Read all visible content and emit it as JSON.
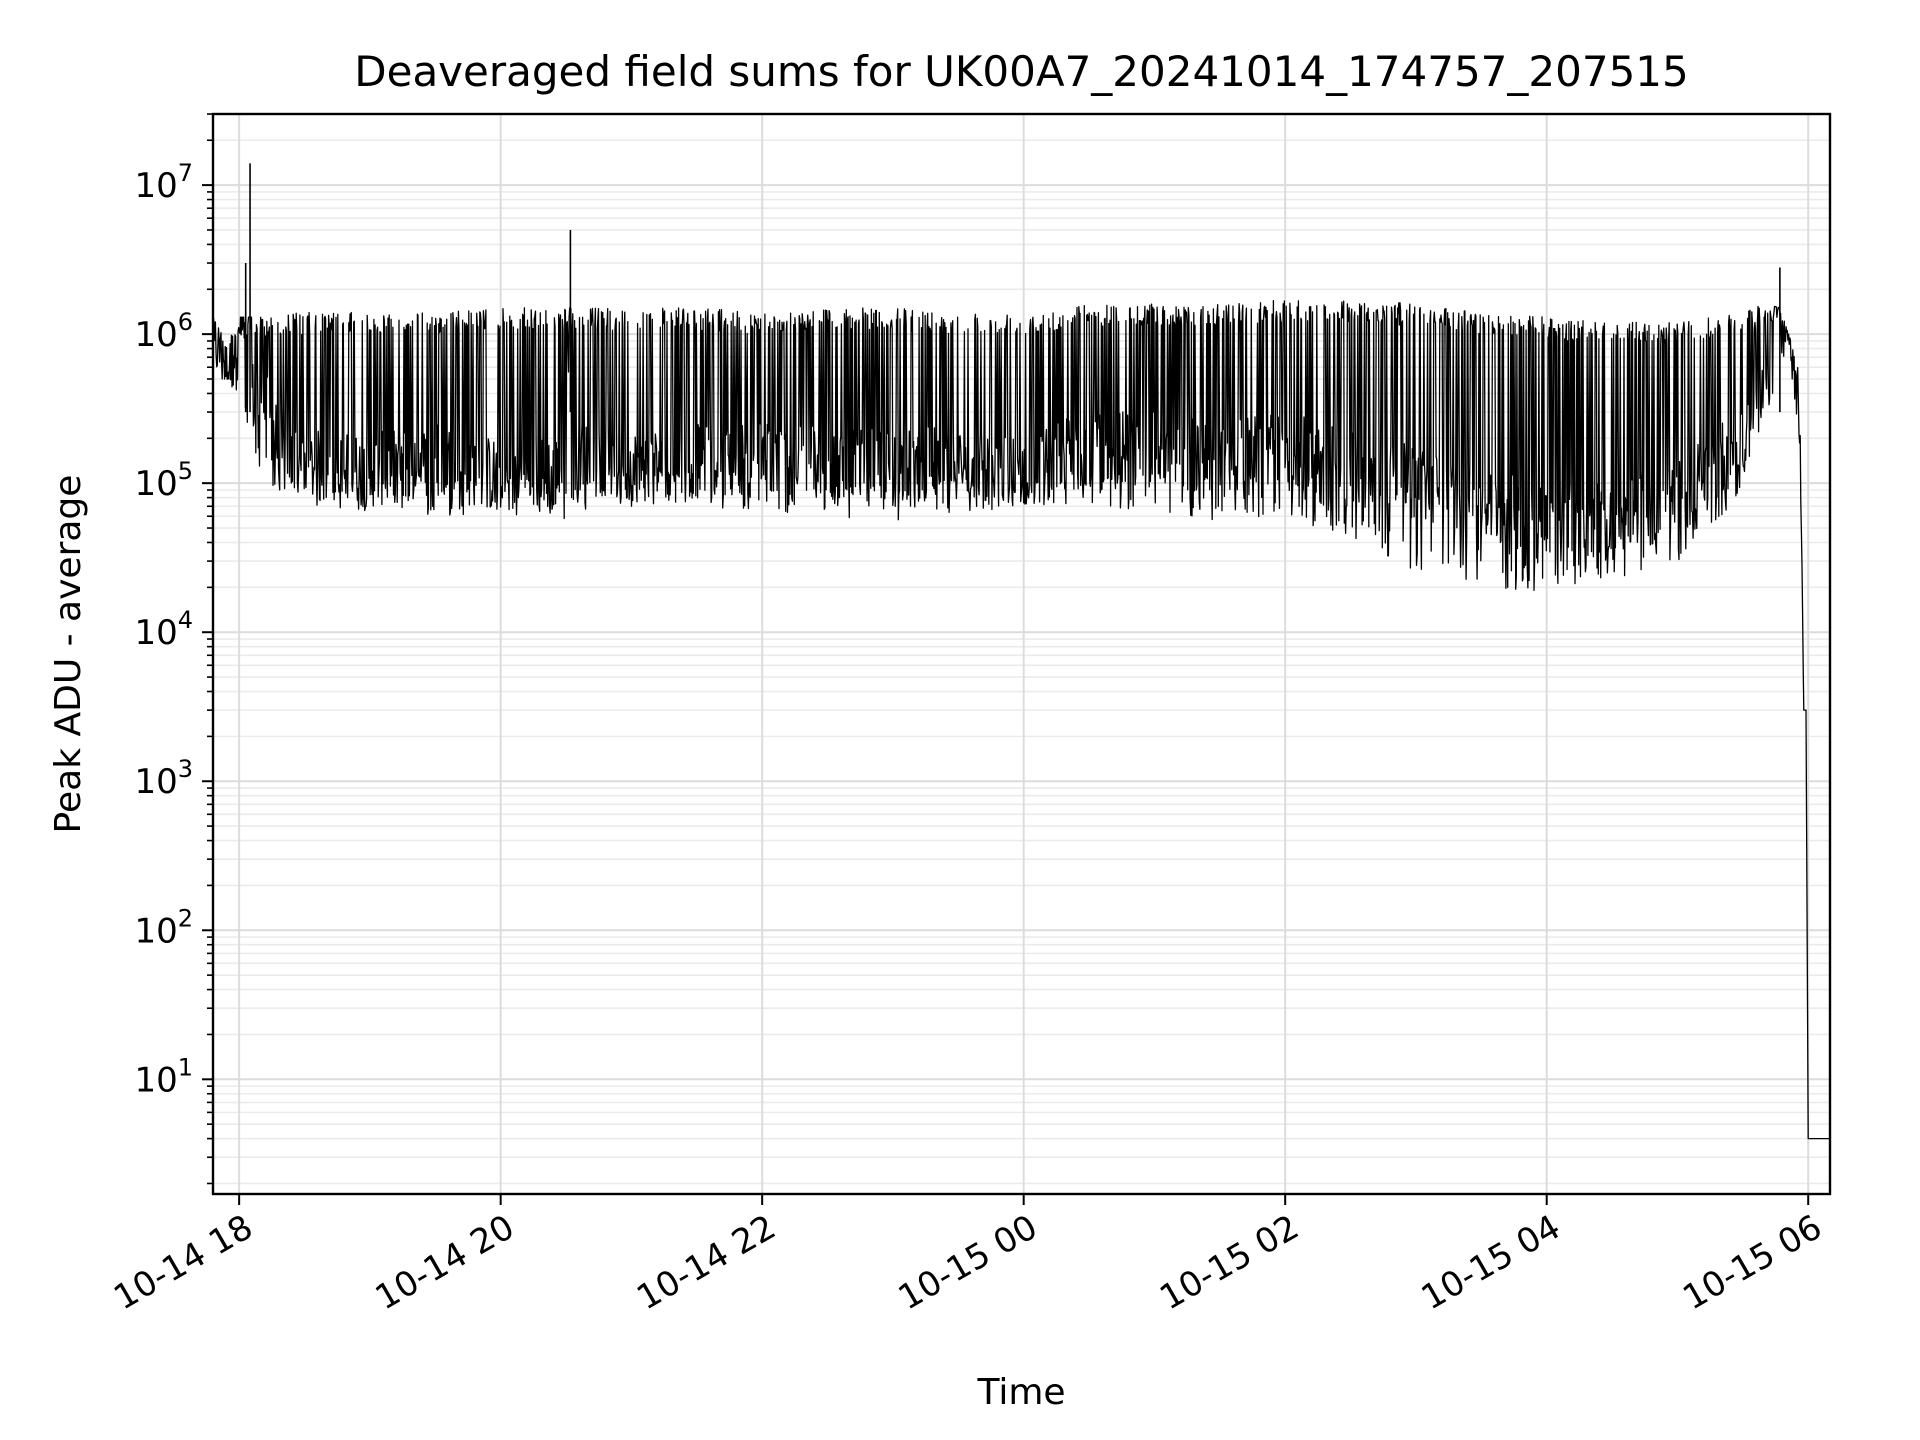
{
  "chart_data": {
    "type": "line",
    "title": "Deaveraged field sums for UK00A7_20241014_174757_207515",
    "xlabel": "Time",
    "ylabel": "Peak ADU - average",
    "yscale": "log",
    "ylim": [
      1.7,
      30000000
    ],
    "xlim": [
      "2024-10-14 17:48",
      "2024-10-15 06:10"
    ],
    "grid": true,
    "legend": "none",
    "line_color": "#000000",
    "x_ticks": [
      {
        "x": "2024-10-14 18:00",
        "label": "10-14 18"
      },
      {
        "x": "2024-10-14 20:00",
        "label": "10-14 20"
      },
      {
        "x": "2024-10-14 22:00",
        "label": "10-14 22"
      },
      {
        "x": "2024-10-15 00:00",
        "label": "10-15 00"
      },
      {
        "x": "2024-10-15 02:00",
        "label": "10-15 02"
      },
      {
        "x": "2024-10-15 04:00",
        "label": "10-15 04"
      },
      {
        "x": "2024-10-15 06:00",
        "label": "10-15 06"
      }
    ],
    "y_ticks": [
      {
        "value": 10,
        "base": "10",
        "exp": "1"
      },
      {
        "value": 100,
        "base": "10",
        "exp": "2"
      },
      {
        "value": 1000,
        "base": "10",
        "exp": "3"
      },
      {
        "value": 10000,
        "base": "10",
        "exp": "4"
      },
      {
        "value": 100000,
        "base": "10",
        "exp": "5"
      },
      {
        "value": 1000000,
        "base": "10",
        "exp": "6"
      },
      {
        "value": 10000000,
        "base": "10",
        "exp": "7"
      }
    ],
    "series": [
      {
        "x": [
          "2024-10-14 17:48",
          "2024-10-14 17:52",
          "2024-10-14 17:56",
          "2024-10-14 18:00",
          "2024-10-14 18:03",
          "2024-10-14 18:05",
          "2024-10-14 18:06",
          "2024-10-14 18:08",
          "2024-10-14 18:10",
          "2024-10-14 18:20",
          "2024-10-14 18:30",
          "2024-10-14 19:00",
          "2024-10-14 19:30",
          "2024-10-14 20:00",
          "2024-10-14 20:30",
          "2024-10-14 20:32",
          "2024-10-14 20:35",
          "2024-10-14 21:00",
          "2024-10-14 21:30",
          "2024-10-14 22:00",
          "2024-10-14 22:30",
          "2024-10-14 23:00",
          "2024-10-14 23:30",
          "2024-10-15 00:00",
          "2024-10-15 00:30",
          "2024-10-15 01:00",
          "2024-10-15 01:30",
          "2024-10-15 02:00",
          "2024-10-15 02:30",
          "2024-10-15 03:00",
          "2024-10-15 03:30",
          "2024-10-15 04:00",
          "2024-10-15 04:30",
          "2024-10-15 05:00",
          "2024-10-15 05:30",
          "2024-10-15 05:40",
          "2024-10-15 05:47",
          "2024-10-15 05:52",
          "2024-10-15 05:56",
          "2024-10-15 05:58",
          "2024-10-15 06:00",
          "2024-10-15 06:05",
          "2024-10-15 06:10"
        ],
        "y": [
          1000000,
          700000,
          600000,
          1000000,
          3000000,
          14000000,
          400000,
          300000,
          400000,
          150000,
          130000,
          120000,
          150000,
          110000,
          120000,
          5000000,
          150000,
          130000,
          140000,
          150000,
          140000,
          130000,
          140000,
          120000,
          180000,
          170000,
          150000,
          170000,
          130000,
          100000,
          70000,
          60000,
          60000,
          80000,
          200000,
          450000,
          2800000,
          800000,
          300000,
          3000,
          4,
          4,
          4
        ],
        "lower_envelope": [
          500000,
          500000,
          500000,
          250000,
          200000,
          200000,
          180000,
          120000,
          90000,
          70000,
          70000,
          65000,
          60000,
          60000,
          55000,
          55000,
          65000,
          70000,
          70000,
          65000,
          60000,
          55000,
          60000,
          65000,
          70000,
          65000,
          55000,
          60000,
          40000,
          25000,
          20000,
          18000,
          22000,
          30000,
          80000,
          300000,
          400000,
          600000,
          200000,
          3000,
          4,
          4,
          4
        ],
        "upper_envelope": [
          1300000,
          1000000,
          1000000,
          1300000,
          1300000,
          1300000,
          1300000,
          1300000,
          1300000,
          1400000,
          1400000,
          1400000,
          1400000,
          1500000,
          1500000,
          1500000,
          1500000,
          1500000,
          1500000,
          1400000,
          1500000,
          1500000,
          1400000,
          1400000,
          1600000,
          1600000,
          1600000,
          1700000,
          1700000,
          1600000,
          1400000,
          1300000,
          1200000,
          1200000,
          1400000,
          1600000,
          1500000,
          900000,
          600000,
          3000,
          4,
          4,
          4
        ]
      }
    ]
  }
}
